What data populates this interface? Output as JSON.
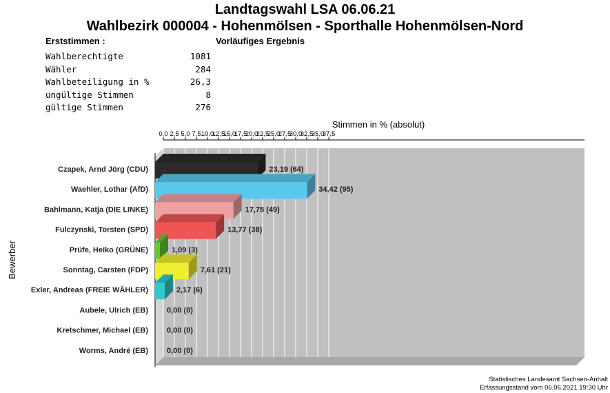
{
  "header": {
    "title_line1": "Landtagswahl LSA 06.06.21",
    "title_line2": "Wahlbezirk 000004 - Hohenmölsen - Sporthalle Hohenmölsen-Nord",
    "stat_label": "Erststimmen  :",
    "status": "Vorläufiges Ergebnis"
  },
  "stats": [
    {
      "label": "Wahlberechtigte",
      "value": "1081"
    },
    {
      "label": "Wähler",
      "value": "284"
    },
    {
      "label": "Wahlbeteiligung in %",
      "value": "26,3"
    },
    {
      "label": "ungültige Stimmen",
      "value": "8"
    },
    {
      "label": "gültige Stimmen",
      "value": "276"
    }
  ],
  "footer": {
    "line1": "Statistisches Landesamt Sachsen-Anhalt",
    "line2": "Erfassungsstand vom 06.06.2021 19:30 Uhr"
  },
  "chart_data": {
    "type": "bar",
    "orientation": "horizontal",
    "xlabel": "Stimmen in % (absolut)",
    "ylabel": "Bewerber",
    "xlim": [
      0,
      38.5
    ],
    "xticks": [
      "0,0",
      "2,5",
      "5,0",
      "7,5",
      "10,0",
      "12,5",
      "15,0",
      "17,5",
      "20,0",
      "22,5",
      "25,0",
      "27,5",
      "30,0",
      "32,5",
      "35,0",
      "37,5"
    ],
    "grid": true,
    "categories": [
      "Czapek, Arnd Jörg (CDU)",
      "Waehler, Lothar (AfD)",
      "Bahlmann, Katja (DIE LINKE)",
      "Fulczynski, Torsten (SPD)",
      "Prüfe, Heiko (GRÜNE)",
      "Sonntag, Carsten (FDP)",
      "Exler, Andreas (FREIE WÄHLER)",
      "Aubele, Ulrich (EB)",
      "Kretschmer, Michael (EB)",
      "Worms, André (EB)"
    ],
    "values": [
      23.19,
      34.42,
      17.75,
      13.77,
      1.09,
      7.61,
      2.17,
      0.0,
      0.0,
      0.0
    ],
    "absolute": [
      64,
      95,
      49,
      38,
      3,
      21,
      6,
      0,
      0,
      0
    ],
    "data_labels": [
      "23,19 (64)",
      "34,42 (95)",
      "17,75 (49)",
      "13,77 (38)",
      "1,09 (3)",
      "7,61 (21)",
      "2,17 (6)",
      "0,00 (0)",
      "0,00 (0)",
      "0,00 (0)"
    ],
    "colors": [
      "#2b2b2b",
      "#59c8ee",
      "#eda1a1",
      "#f05555",
      "#5fcc2a",
      "#f0ee30",
      "#2ccccc",
      "#c0c0c0",
      "#c0c0c0",
      "#c0c0c0"
    ],
    "plot_background": "#c0c0c0"
  }
}
